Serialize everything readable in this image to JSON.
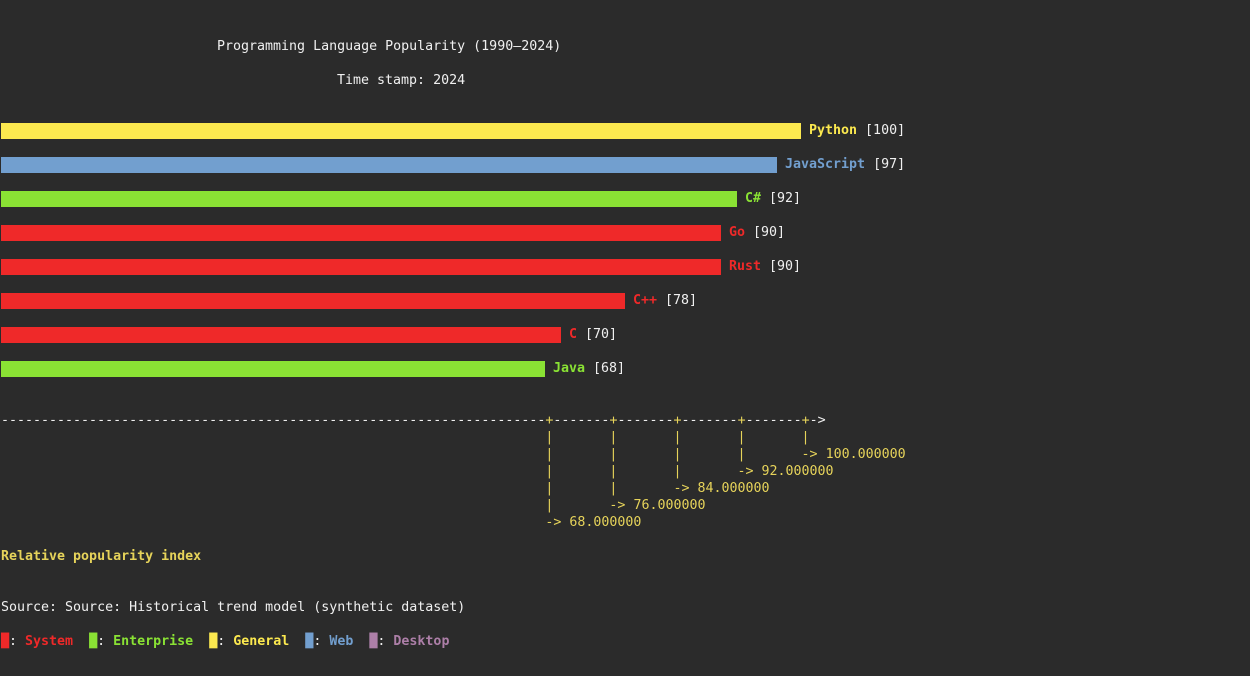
{
  "chart_data": {
    "type": "bar",
    "orientation": "horizontal",
    "title": "Programming Language Popularity (1990–2024)",
    "subtitle": "Time stamp: 2024",
    "categories": [
      "Python",
      "JavaScript",
      "C#",
      "Go",
      "Rust",
      "C++",
      "C",
      "Java"
    ],
    "values": [
      100,
      97,
      92,
      90,
      90,
      78,
      70,
      68
    ],
    "groups": [
      "General",
      "Web",
      "Enterprise",
      "System",
      "System",
      "System",
      "System",
      "Enterprise"
    ],
    "xlabel": "Relative popularity index",
    "x_ticks": [
      68,
      76,
      84,
      92,
      100
    ],
    "x_tick_labels": [
      "68.000000",
      "76.000000",
      "84.000000",
      "92.000000",
      "100.000000"
    ],
    "source": "Source: Source: Historical trend model (synthetic dataset)",
    "legend": [
      {
        "name": "System",
        "color": "#ef2929"
      },
      {
        "name": "Enterprise",
        "color": "#8ae234"
      },
      {
        "name": "General",
        "color": "#fce94f"
      },
      {
        "name": "Web",
        "color": "#729fcf"
      },
      {
        "name": "Desktop",
        "color": "#ad7fa8"
      }
    ],
    "legend_position": "bottom-left",
    "grid": false
  },
  "colors": {
    "background": "#2b2b2b",
    "axis": "#e6d35a",
    "text": "#f0f0f0"
  }
}
